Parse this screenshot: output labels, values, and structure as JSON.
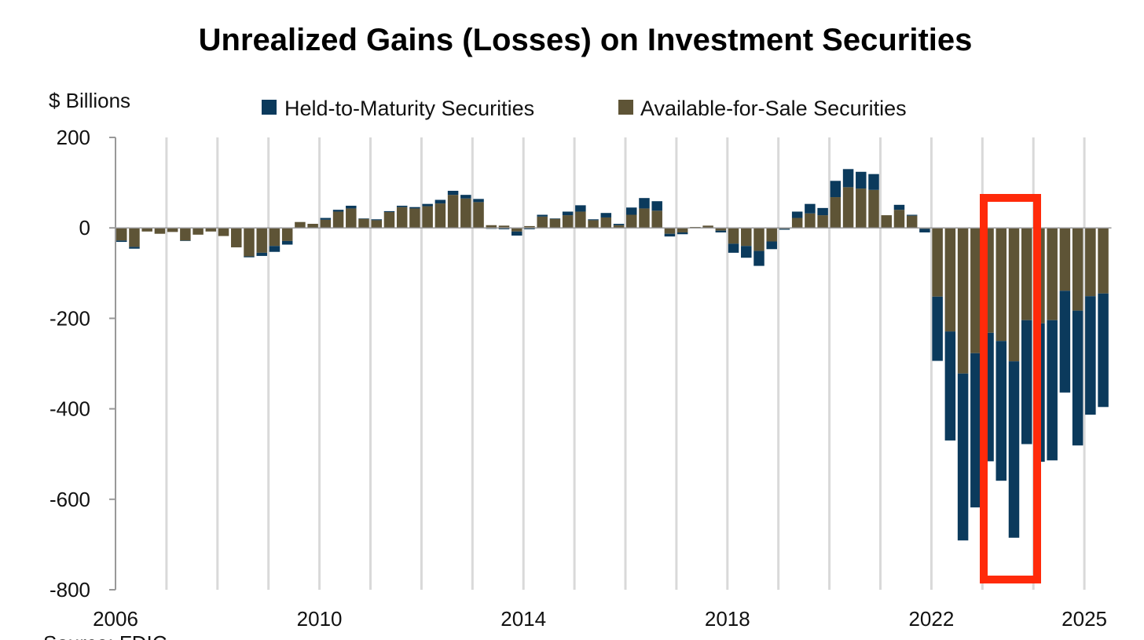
{
  "chart_data": {
    "type": "bar",
    "stacked": true,
    "title": "Unrealized Gains (Losses) on Investment Securities",
    "ylabel": "$ Billions",
    "xlabel": "",
    "ylim": [
      -800,
      200
    ],
    "yticks": [
      "200",
      "0",
      "-200",
      "-400",
      "-600",
      "-800"
    ],
    "ytick_values": [
      200,
      0,
      -200,
      -400,
      -600,
      -800
    ],
    "xtick_labels": [
      "2006",
      "2010",
      "2014",
      "2018",
      "2022",
      "2025"
    ],
    "xtick_years": [
      2006,
      2010,
      2014,
      2018,
      2022,
      2025
    ],
    "start_year": 2006,
    "frequency": "quarterly",
    "grid": "vertical lines at each year",
    "legend_position": "top-center",
    "series": [
      {
        "name": "Held-to-Maturity Securities",
        "color": "#0b3a5c",
        "values": [
          -3,
          -4,
          0,
          0,
          0,
          -1,
          0,
          0,
          0,
          0,
          -2,
          -7,
          -13,
          -8,
          0,
          0,
          4,
          4,
          6,
          1,
          2,
          2,
          3,
          3,
          5,
          8,
          9,
          8,
          7,
          -2,
          -3,
          -9,
          -3,
          4,
          1,
          8,
          14,
          2,
          10,
          3,
          16,
          23,
          21,
          -6,
          -4,
          0,
          0,
          -4,
          -20,
          -26,
          -33,
          -17,
          -2,
          14,
          21,
          16,
          36,
          40,
          37,
          35,
          0,
          11,
          2,
          -8,
          -142,
          -241,
          -369,
          -341,
          -284,
          -309,
          -390,
          -274,
          -306,
          -310,
          -225,
          -298,
          -262,
          -251
        ]
      },
      {
        "name": "Available-for-Sale Securities",
        "color": "#5e5436",
        "values": [
          -28,
          -42,
          -8,
          -13,
          -9,
          -28,
          -15,
          -8,
          -18,
          -43,
          -63,
          -55,
          -40,
          -29,
          13,
          9,
          18,
          36,
          43,
          20,
          17,
          35,
          46,
          43,
          48,
          54,
          73,
          65,
          57,
          6,
          5,
          -8,
          4,
          25,
          20,
          28,
          36,
          17,
          23,
          6,
          29,
          43,
          38,
          -13,
          -10,
          2,
          5,
          -6,
          -35,
          -40,
          -51,
          -30,
          -2,
          22,
          32,
          28,
          68,
          90,
          87,
          84,
          28,
          40,
          27,
          -2,
          -152,
          -229,
          -322,
          -277,
          -232,
          -250,
          -295,
          -204,
          -211,
          -204,
          -139,
          -183,
          -151,
          -145
        ]
      }
    ],
    "annotation": {
      "type": "highlight-box",
      "color": "#ff2a0a",
      "period": "2023Q2-2024Q1"
    }
  },
  "source": "Source: FDIC"
}
